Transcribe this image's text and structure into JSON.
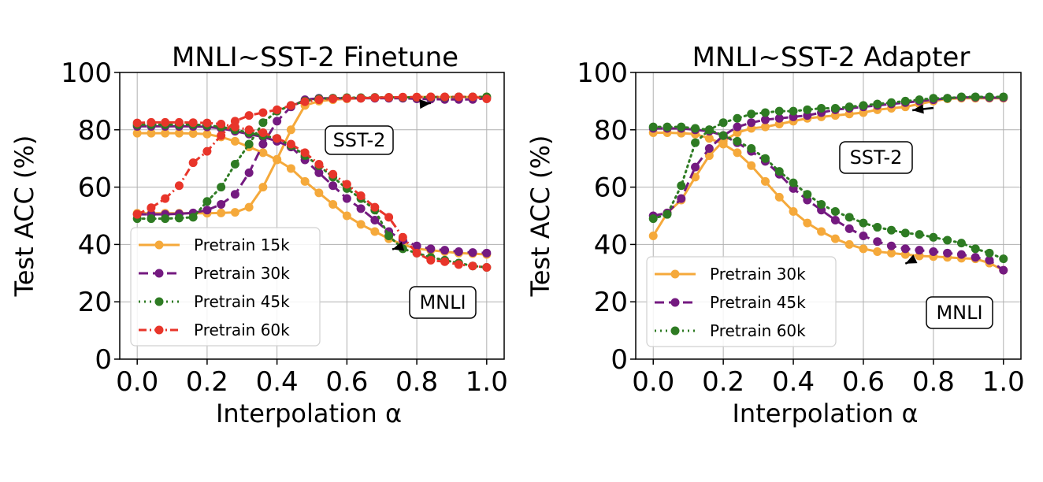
{
  "chart_data": [
    {
      "type": "line",
      "title": "MNLI~SST-2 Finetune",
      "xlabel": "Interpolation α",
      "ylabel": "Test ACC (%)",
      "xlim": [
        -0.05,
        1.05
      ],
      "ylim": [
        0,
        100
      ],
      "xticks": [
        "0.0",
        "0.2",
        "0.4",
        "0.6",
        "0.8",
        "1.0"
      ],
      "yticks": [
        "0",
        "20",
        "40",
        "60",
        "80",
        "100"
      ],
      "grid": true,
      "legend_position": "lower-left",
      "x": [
        0.0,
        0.04,
        0.08,
        0.12,
        0.16,
        0.2,
        0.24,
        0.28,
        0.32,
        0.36,
        0.4,
        0.44,
        0.48,
        0.52,
        0.56,
        0.6,
        0.64,
        0.68,
        0.72,
        0.76,
        0.8,
        0.84,
        0.88,
        0.92,
        0.96,
        1.0
      ],
      "annotations": [
        {
          "text": "SST-2",
          "points_to": [
            0.84,
            91.5
          ]
        },
        {
          "text": "MNLI",
          "points_to": [
            0.73,
            40.5
          ]
        }
      ],
      "series": [
        {
          "name": "Pretrain 15k",
          "color": "#F5A93B",
          "linestyle": "solid",
          "metric": "SST-2",
          "values": [
            50.9,
            50.9,
            50.9,
            50.9,
            50.9,
            50.9,
            51.0,
            51.2,
            53.0,
            60.0,
            69.7,
            80.0,
            88.5,
            90.0,
            90.5,
            90.8,
            91.0,
            91.2,
            91.3,
            91.3,
            91.4,
            91.5,
            91.4,
            91.5,
            91.4,
            91.5
          ]
        },
        {
          "name": "Pretrain 15k",
          "color": "#F5A93B",
          "linestyle": "solid",
          "metric": "MNLI",
          "values": [
            78.8,
            78.8,
            78.8,
            78.8,
            78.7,
            78.5,
            77.5,
            76.0,
            74.0,
            72.0,
            69.5,
            66.5,
            62.0,
            58.0,
            54.0,
            50.0,
            47.0,
            44.5,
            42.0,
            40.0,
            38.5,
            38.0,
            37.5,
            37.0,
            36.8,
            36.5
          ]
        },
        {
          "name": "Pretrain 30k",
          "color": "#741A80",
          "linestyle": "dashed",
          "metric": "SST-2",
          "values": [
            50.5,
            50.5,
            50.5,
            50.7,
            51.0,
            52.0,
            54.0,
            57.5,
            65.0,
            75.0,
            83.0,
            88.0,
            90.5,
            91.0,
            91.0,
            91.0,
            91.0,
            91.0,
            91.0,
            91.0,
            90.8,
            90.7,
            90.6,
            90.6,
            90.6,
            91.0
          ]
        },
        {
          "name": "Pretrain 30k",
          "color": "#741A80",
          "linestyle": "dashed",
          "metric": "MNLI",
          "values": [
            81.2,
            81.2,
            81.2,
            81.2,
            81.2,
            81.0,
            80.5,
            79.5,
            78.5,
            77.5,
            76.0,
            74.0,
            69.5,
            65.0,
            60.5,
            56.0,
            52.5,
            48.5,
            44.5,
            41.5,
            39.5,
            38.5,
            38.0,
            37.5,
            37.2,
            37.0
          ]
        },
        {
          "name": "Pretrain 45k",
          "color": "#2E7B23",
          "linestyle": "dotted",
          "metric": "SST-2",
          "values": [
            49.0,
            49.0,
            49.0,
            49.2,
            49.5,
            55.0,
            60.0,
            68.0,
            75.0,
            82.5,
            86.5,
            88.5,
            90.0,
            90.8,
            91.0,
            91.2,
            91.2,
            91.3,
            91.3,
            91.3,
            91.3,
            91.4,
            91.4,
            91.5,
            91.5,
            91.5
          ]
        },
        {
          "name": "Pretrain 45k",
          "color": "#2E7B23",
          "linestyle": "dotted",
          "metric": "MNLI",
          "values": [
            81.8,
            81.8,
            81.8,
            81.8,
            81.8,
            81.6,
            81.0,
            80.0,
            79.0,
            78.0,
            77.0,
            74.5,
            71.0,
            67.5,
            63.5,
            59.5,
            56.0,
            52.0,
            43.0,
            38.5,
            37.0,
            35.5,
            34.5,
            33.5,
            32.5,
            32.0
          ]
        },
        {
          "name": "Pretrain 60k",
          "color": "#E8352A",
          "linestyle": "dashdot",
          "metric": "SST-2",
          "values": [
            50.5,
            52.8,
            56.0,
            60.5,
            68.5,
            72.5,
            78.0,
            83.0,
            85.0,
            86.0,
            87.0,
            88.5,
            89.8,
            90.5,
            90.8,
            91.0,
            91.0,
            91.2,
            91.3,
            91.4,
            91.4,
            91.5,
            91.5,
            91.5,
            91.5,
            90.8
          ]
        },
        {
          "name": "Pretrain 60k",
          "color": "#E8352A",
          "linestyle": "dashdot",
          "metric": "MNLI",
          "values": [
            82.4,
            82.6,
            82.6,
            82.6,
            82.5,
            82.4,
            82.0,
            81.0,
            80.0,
            79.0,
            77.0,
            75.0,
            72.0,
            68.0,
            64.5,
            61.0,
            57.0,
            53.0,
            49.5,
            42.5,
            37.0,
            34.5,
            34.0,
            33.0,
            32.5,
            32.0
          ]
        }
      ]
    },
    {
      "type": "line",
      "title": "MNLI~SST-2 Adapter",
      "xlabel": "Interpolation α",
      "ylabel": "Test ACC (%)",
      "xlim": [
        -0.05,
        1.05
      ],
      "ylim": [
        0,
        100
      ],
      "xticks": [
        "0.0",
        "0.2",
        "0.4",
        "0.6",
        "0.8",
        "1.0"
      ],
      "yticks": [
        "0",
        "20",
        "40",
        "60",
        "80",
        "100"
      ],
      "grid": true,
      "legend_position": "lower-left",
      "x": [
        0.0,
        0.04,
        0.08,
        0.12,
        0.16,
        0.2,
        0.24,
        0.28,
        0.32,
        0.36,
        0.4,
        0.44,
        0.48,
        0.52,
        0.56,
        0.6,
        0.64,
        0.68,
        0.72,
        0.76,
        0.8,
        0.84,
        0.88,
        0.92,
        0.96,
        1.0
      ],
      "annotations": [
        {
          "text": "SST-2",
          "points_to": [
            0.74,
            89.0
          ]
        },
        {
          "text": "MNLI",
          "points_to": [
            0.72,
            35.5
          ]
        }
      ],
      "series": [
        {
          "name": "Pretrain 30k",
          "color": "#F5A93B",
          "linestyle": "solid",
          "metric": "SST-2",
          "values": [
            43.0,
            51.0,
            55.5,
            63.5,
            71.0,
            76.0,
            79.0,
            80.5,
            81.0,
            82.0,
            83.0,
            84.0,
            84.5,
            85.0,
            85.5,
            86.0,
            87.0,
            87.5,
            88.0,
            89.0,
            90.0,
            90.8,
            91.0,
            91.0,
            91.0,
            91.0
          ]
        },
        {
          "name": "Pretrain 30k",
          "color": "#F5A93B",
          "linestyle": "solid",
          "metric": "MNLI",
          "values": [
            79.0,
            79.0,
            78.8,
            78.5,
            77.0,
            75.0,
            72.0,
            67.5,
            62.0,
            56.5,
            51.5,
            47.5,
            44.5,
            42.0,
            40.0,
            38.5,
            37.5,
            37.0,
            36.5,
            36.0,
            35.8,
            35.5,
            35.2,
            35.0,
            33.5,
            31.0
          ]
        },
        {
          "name": "Pretrain 45k",
          "color": "#741A80",
          "linestyle": "dashed",
          "metric": "SST-2",
          "values": [
            50.0,
            51.0,
            56.0,
            67.0,
            73.5,
            78.0,
            81.0,
            82.5,
            83.5,
            84.0,
            84.5,
            85.0,
            86.0,
            87.0,
            87.5,
            88.0,
            88.5,
            89.0,
            89.5,
            90.0,
            90.5,
            91.0,
            91.3,
            91.3,
            91.2,
            91.2
          ]
        },
        {
          "name": "Pretrain 45k",
          "color": "#741A80",
          "linestyle": "dashed",
          "metric": "MNLI",
          "values": [
            80.5,
            80.5,
            80.5,
            80.0,
            79.5,
            78.0,
            75.5,
            72.5,
            69.0,
            64.5,
            59.5,
            55.5,
            52.0,
            48.5,
            45.5,
            43.0,
            41.0,
            39.5,
            38.5,
            38.0,
            37.5,
            37.0,
            36.5,
            35.5,
            34.5,
            31.0
          ]
        },
        {
          "name": "Pretrain 60k",
          "color": "#2E7B23",
          "linestyle": "dotted",
          "metric": "SST-2",
          "values": [
            49.0,
            50.5,
            60.5,
            75.5,
            80.0,
            82.5,
            84.0,
            85.5,
            86.0,
            86.5,
            86.5,
            87.0,
            87.5,
            87.5,
            88.0,
            88.5,
            89.0,
            89.5,
            90.0,
            90.5,
            91.0,
            91.0,
            91.5,
            91.5,
            91.5,
            91.5
          ]
        },
        {
          "name": "Pretrain 60k",
          "color": "#2E7B23",
          "linestyle": "dotted",
          "metric": "MNLI",
          "values": [
            81.0,
            81.0,
            81.0,
            80.5,
            80.0,
            78.0,
            76.0,
            73.5,
            70.0,
            65.5,
            61.5,
            57.5,
            54.0,
            51.5,
            49.5,
            47.5,
            46.0,
            45.0,
            44.0,
            43.5,
            42.5,
            41.5,
            40.5,
            38.5,
            37.0,
            35.0
          ]
        }
      ]
    }
  ]
}
